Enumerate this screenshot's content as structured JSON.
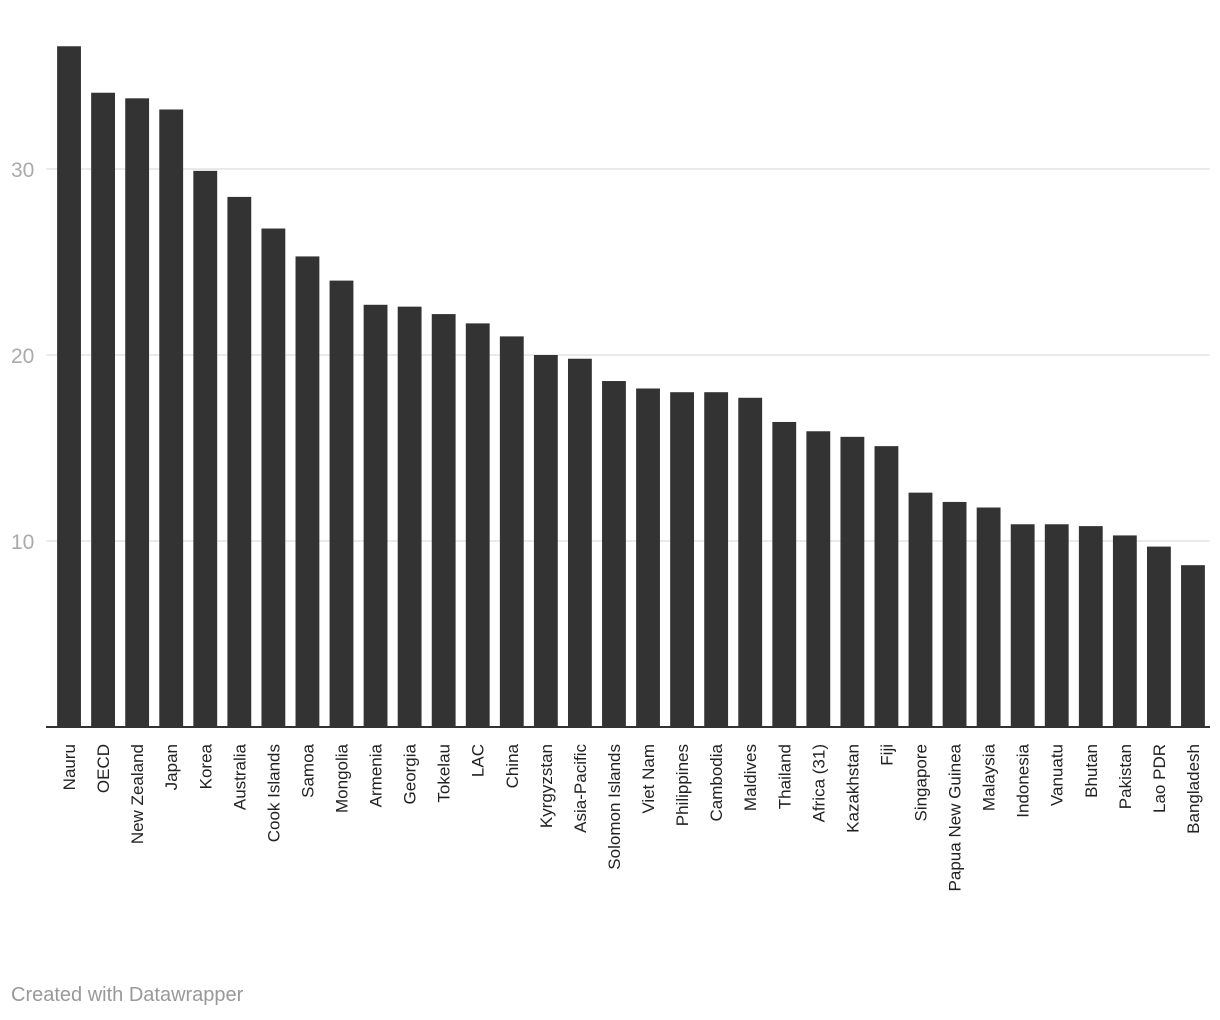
{
  "chart_data": {
    "type": "bar",
    "categories": [
      "Nauru",
      "OECD",
      "New Zealand",
      "Japan",
      "Korea",
      "Australia",
      "Cook Islands",
      "Samoa",
      "Mongolia",
      "Armenia",
      "Georgia",
      "Tokelau",
      "LAC",
      "China",
      "Kyrgyzstan",
      "Asia-Pacific",
      "Solomon Islands",
      "Viet Nam",
      "Philippines",
      "Cambodia",
      "Maldives",
      "Thailand",
      "Africa (31)",
      "Kazakhstan",
      "Fiji",
      "Singapore",
      "Papua New Guinea",
      "Malaysia",
      "Indonesia",
      "Vanuatu",
      "Bhutan",
      "Pakistan",
      "Lao PDR",
      "Bangladesh"
    ],
    "values": [
      36.6,
      34.1,
      33.8,
      33.2,
      29.9,
      28.5,
      26.8,
      25.3,
      24.0,
      22.7,
      22.6,
      22.2,
      21.7,
      21.0,
      20.0,
      19.8,
      18.6,
      18.2,
      18.0,
      18.0,
      17.7,
      16.4,
      15.9,
      15.6,
      15.1,
      12.6,
      12.1,
      11.8,
      10.9,
      10.9,
      10.8,
      10.3,
      9.7,
      8.7
    ],
    "yticks": [
      10,
      20,
      30
    ],
    "ylim": [
      0,
      38
    ],
    "grid": true,
    "bar_color": "#333333",
    "title": "",
    "xlabel": "",
    "ylabel": ""
  },
  "footer": {
    "credit": "Created with Datawrapper"
  }
}
